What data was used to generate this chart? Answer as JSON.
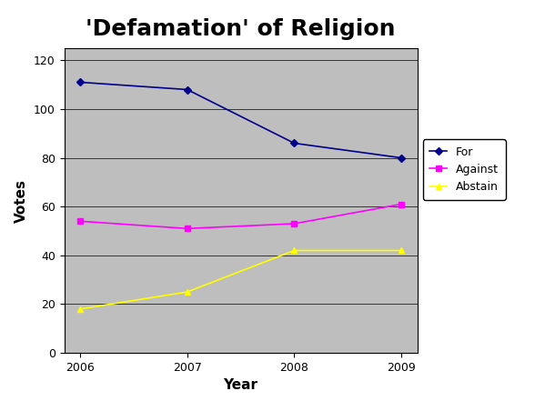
{
  "title": "'Defamation' of Religion",
  "xlabel": "Year",
  "ylabel": "Votes",
  "years": [
    2006,
    2007,
    2008,
    2009
  ],
  "series": {
    "For": {
      "values": [
        111,
        108,
        86,
        80
      ],
      "color": "#00008B",
      "marker": "D"
    },
    "Against": {
      "values": [
        54,
        51,
        53,
        61
      ],
      "color": "#FF00FF",
      "marker": "s"
    },
    "Abstain": {
      "values": [
        18,
        25,
        42,
        42
      ],
      "color": "#FFFF00",
      "marker": "^"
    }
  },
  "ylim": [
    0,
    125
  ],
  "yticks": [
    0,
    20,
    40,
    60,
    80,
    100,
    120
  ],
  "plot_bg_color": "#BEBEBE",
  "outer_bg_color": "#FFFFFF",
  "title_fontsize": 18,
  "axis_label_fontsize": 11,
  "tick_fontsize": 9,
  "grid_color": "#000000",
  "grid_linewidth": 0.5
}
